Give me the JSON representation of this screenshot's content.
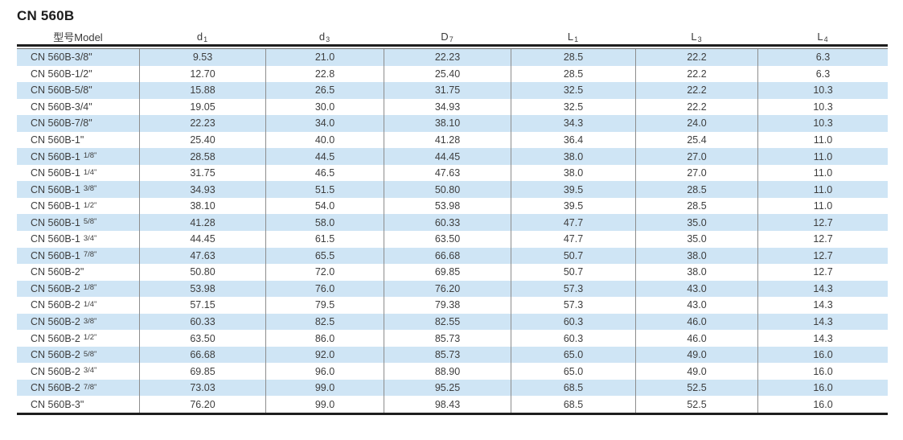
{
  "title": "CN 560B",
  "colors": {
    "stripe_blue": "#cfe5f5",
    "rule_dark": "#1e1e1e",
    "rule_thin": "#6f6f6f",
    "column_divider": "#8d8d8d",
    "text": "#3e3e3e"
  },
  "table": {
    "headers": [
      {
        "base": "型号Model",
        "sub": ""
      },
      {
        "base": "d",
        "sub": "1"
      },
      {
        "base": "d",
        "sub": "3"
      },
      {
        "base": "D",
        "sub": "7"
      },
      {
        "base": "L",
        "sub": "1"
      },
      {
        "base": "L",
        "sub": "3"
      },
      {
        "base": "L",
        "sub": "4"
      }
    ],
    "rows": [
      {
        "model": "CN 560B-3/8\"",
        "model_frac": "",
        "values": [
          "9.53",
          "21.0",
          "22.23",
          "28.5",
          "22.2",
          "6.3"
        ]
      },
      {
        "model": "CN 560B-1/2\"",
        "model_frac": "",
        "values": [
          "12.70",
          "22.8",
          "25.40",
          "28.5",
          "22.2",
          "6.3"
        ]
      },
      {
        "model": "CN 560B-5/8\"",
        "model_frac": "",
        "values": [
          "15.88",
          "26.5",
          "31.75",
          "32.5",
          "22.2",
          "10.3"
        ]
      },
      {
        "model": "CN 560B-3/4\"",
        "model_frac": "",
        "values": [
          "19.05",
          "30.0",
          "34.93",
          "32.5",
          "22.2",
          "10.3"
        ]
      },
      {
        "model": "CN 560B-7/8\"",
        "model_frac": "",
        "values": [
          "22.23",
          "34.0",
          "38.10",
          "34.3",
          "24.0",
          "10.3"
        ]
      },
      {
        "model": "CN 560B-1\"",
        "model_frac": "",
        "values": [
          "25.40",
          "40.0",
          "41.28",
          "36.4",
          "25.4",
          "11.0"
        ]
      },
      {
        "model": "CN 560B-1",
        "model_frac": "1/8\"",
        "values": [
          "28.58",
          "44.5",
          "44.45",
          "38.0",
          "27.0",
          "11.0"
        ]
      },
      {
        "model": "CN 560B-1",
        "model_frac": "1/4\"",
        "values": [
          "31.75",
          "46.5",
          "47.63",
          "38.0",
          "27.0",
          "11.0"
        ]
      },
      {
        "model": "CN 560B-1",
        "model_frac": "3/8\"",
        "values": [
          "34.93",
          "51.5",
          "50.80",
          "39.5",
          "28.5",
          "11.0"
        ]
      },
      {
        "model": "CN 560B-1",
        "model_frac": "1/2\"",
        "values": [
          "38.10",
          "54.0",
          "53.98",
          "39.5",
          "28.5",
          "11.0"
        ]
      },
      {
        "model": "CN 560B-1",
        "model_frac": "5/8\"",
        "values": [
          "41.28",
          "58.0",
          "60.33",
          "47.7",
          "35.0",
          "12.7"
        ]
      },
      {
        "model": "CN 560B-1",
        "model_frac": "3/4\"",
        "values": [
          "44.45",
          "61.5",
          "63.50",
          "47.7",
          "35.0",
          "12.7"
        ]
      },
      {
        "model": "CN 560B-1",
        "model_frac": "7/8\"",
        "values": [
          "47.63",
          "65.5",
          "66.68",
          "50.7",
          "38.0",
          "12.7"
        ]
      },
      {
        "model": "CN 560B-2\"",
        "model_frac": "",
        "values": [
          "50.80",
          "72.0",
          "69.85",
          "50.7",
          "38.0",
          "12.7"
        ]
      },
      {
        "model": "CN 560B-2",
        "model_frac": "1/8\"",
        "values": [
          "53.98",
          "76.0",
          "76.20",
          "57.3",
          "43.0",
          "14.3"
        ]
      },
      {
        "model": "CN 560B-2",
        "model_frac": "1/4\"",
        "values": [
          "57.15",
          "79.5",
          "79.38",
          "57.3",
          "43.0",
          "14.3"
        ]
      },
      {
        "model": "CN 560B-2",
        "model_frac": "3/8\"",
        "values": [
          "60.33",
          "82.5",
          "82.55",
          "60.3",
          "46.0",
          "14.3"
        ]
      },
      {
        "model": "CN 560B-2",
        "model_frac": "1/2\"",
        "values": [
          "63.50",
          "86.0",
          "85.73",
          "60.3",
          "46.0",
          "14.3"
        ]
      },
      {
        "model": "CN 560B-2",
        "model_frac": "5/8\"",
        "values": [
          "66.68",
          "92.0",
          "85.73",
          "65.0",
          "49.0",
          "16.0"
        ]
      },
      {
        "model": "CN 560B-2",
        "model_frac": "3/4\"",
        "values": [
          "69.85",
          "96.0",
          "88.90",
          "65.0",
          "49.0",
          "16.0"
        ]
      },
      {
        "model": "CN 560B-2",
        "model_frac": "7/8\"",
        "values": [
          "73.03",
          "99.0",
          "95.25",
          "68.5",
          "52.5",
          "16.0"
        ]
      },
      {
        "model": "CN 560B-3\"",
        "model_frac": "",
        "values": [
          "76.20",
          "99.0",
          "98.43",
          "68.5",
          "52.5",
          "16.0"
        ]
      }
    ]
  }
}
